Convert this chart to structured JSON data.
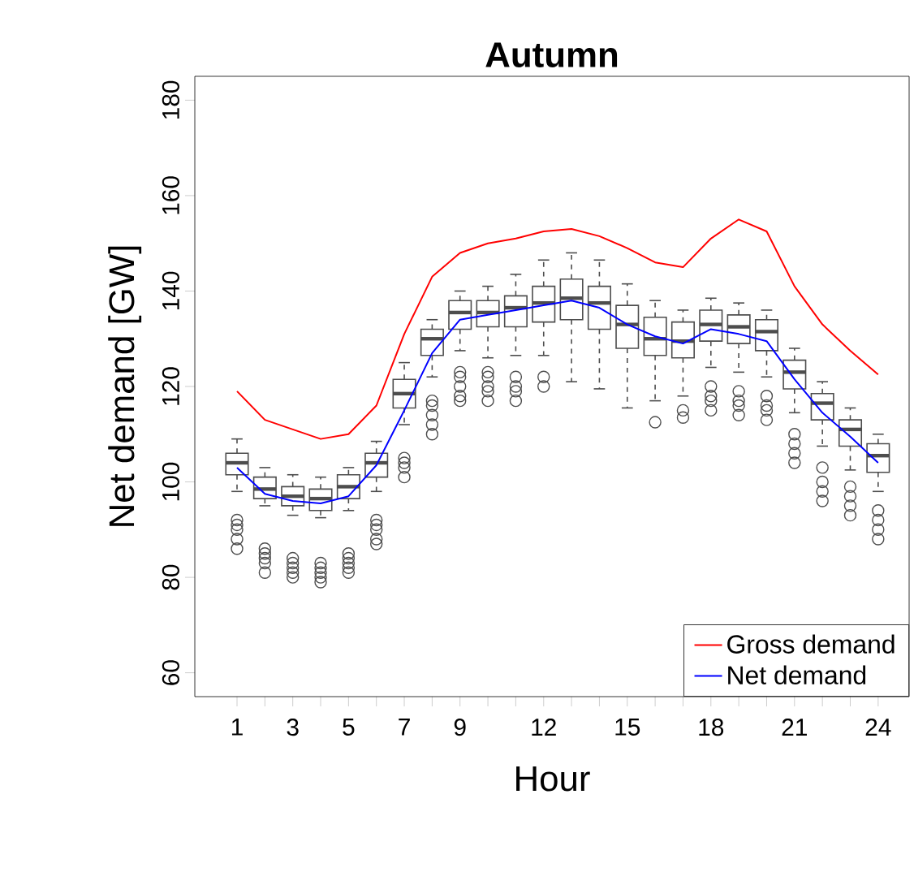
{
  "chart_data": {
    "type": "box",
    "title": "Autumn",
    "xlabel": "Hour",
    "ylabel": "Net demand [GW]",
    "categories": [
      "1",
      null,
      "3",
      null,
      "5",
      null,
      "7",
      null,
      "9",
      null,
      null,
      "12",
      null,
      null,
      "15",
      null,
      null,
      "18",
      null,
      null,
      "21",
      null,
      null,
      "24"
    ],
    "ylim": [
      55,
      185
    ],
    "yticks": [
      60,
      80,
      100,
      120,
      140,
      160,
      180
    ],
    "legend": "bottom right",
    "series": [
      {
        "color": "#4d4d4d",
        "boxes": [
          {
            "low": 98,
            "q1": 101.5,
            "median": 104,
            "q3": 106,
            "high": 109,
            "outliers": [
              86,
              88,
              90,
              91,
              92
            ]
          },
          {
            "low": 95,
            "q1": 96.5,
            "median": 98.5,
            "q3": 101,
            "high": 103,
            "outliers": [
              81,
              83,
              84,
              85,
              86
            ]
          },
          {
            "low": 93,
            "q1": 95,
            "median": 97,
            "q3": 99,
            "high": 101.5,
            "outliers": [
              80,
              81,
              82,
              83,
              84
            ]
          },
          {
            "low": 92.5,
            "q1": 94,
            "median": 96.5,
            "q3": 98.5,
            "high": 101,
            "outliers": [
              79,
              80,
              81,
              82,
              83
            ]
          },
          {
            "low": 94,
            "q1": 96.5,
            "median": 99,
            "q3": 101.5,
            "high": 103,
            "outliers": [
              81,
              82,
              83,
              84,
              85
            ]
          },
          {
            "low": 98,
            "q1": 101,
            "median": 104,
            "q3": 106,
            "high": 108.5,
            "outliers": [
              87,
              88,
              90,
              91,
              92
            ]
          },
          {
            "low": 112,
            "q1": 115.5,
            "median": 118.5,
            "q3": 121.5,
            "high": 125,
            "outliers": [
              101,
              103,
              104,
              105
            ]
          },
          {
            "low": 122,
            "q1": 126.5,
            "median": 130,
            "q3": 132,
            "high": 134,
            "outliers": [
              110,
              112,
              114,
              116,
              117
            ]
          },
          {
            "low": 127.5,
            "q1": 132,
            "median": 135.5,
            "q3": 138,
            "high": 140,
            "outliers": [
              117,
              118,
              120,
              122,
              123
            ]
          },
          {
            "low": 126,
            "q1": 132.5,
            "median": 135.5,
            "q3": 138,
            "high": 141,
            "outliers": [
              117,
              119,
              120,
              122,
              123
            ]
          },
          {
            "low": 126.5,
            "q1": 132.5,
            "median": 136.5,
            "q3": 139,
            "high": 143.5,
            "outliers": [
              117,
              119,
              120,
              122
            ]
          },
          {
            "low": 126.5,
            "q1": 133.5,
            "median": 137.5,
            "q3": 141,
            "high": 146.5,
            "outliers": [
              120,
              122
            ]
          },
          {
            "low": 121,
            "q1": 134,
            "median": 138.5,
            "q3": 142.5,
            "high": 148
          },
          {
            "low": 119.5,
            "q1": 132,
            "median": 137.5,
            "q3": 141,
            "high": 146.5
          },
          {
            "low": 115.5,
            "q1": 128,
            "median": 133,
            "q3": 137,
            "high": 141.5
          },
          {
            "low": 117,
            "q1": 126.5,
            "median": 130,
            "q3": 134.5,
            "high": 138,
            "outliers": [
              112.5
            ]
          },
          {
            "low": 118,
            "q1": 126,
            "median": 129.5,
            "q3": 133.5,
            "high": 136,
            "outliers": [
              113.5,
              115
            ]
          },
          {
            "low": 124,
            "q1": 129.5,
            "median": 133,
            "q3": 136,
            "high": 138.5,
            "outliers": [
              115,
              117,
              118,
              120
            ]
          },
          {
            "low": 123,
            "q1": 129,
            "median": 132.5,
            "q3": 135,
            "high": 137.5,
            "outliers": [
              114,
              116,
              117,
              119
            ]
          },
          {
            "low": 122,
            "q1": 127.5,
            "median": 131.5,
            "q3": 134,
            "high": 136,
            "outliers": [
              113,
              115,
              116,
              118
            ]
          },
          {
            "low": 114.5,
            "q1": 119.5,
            "median": 123,
            "q3": 125.5,
            "high": 128,
            "outliers": [
              104,
              106,
              108,
              110
            ]
          },
          {
            "low": 107.5,
            "q1": 113,
            "median": 116.5,
            "q3": 118.5,
            "high": 121,
            "outliers": [
              96,
              98,
              100,
              103
            ]
          },
          {
            "low": 102.5,
            "q1": 107.5,
            "median": 111,
            "q3": 113,
            "high": 115.5,
            "outliers": [
              93,
              95,
              97,
              99
            ]
          },
          {
            "low": 98,
            "q1": 102,
            "median": 105.5,
            "q3": 108,
            "high": 110,
            "outliers": [
              88,
              90,
              92,
              94
            ]
          }
        ]
      },
      {
        "type": "line",
        "name": "Gross demand",
        "color": "#ff0000",
        "values": [
          119,
          113,
          111,
          109,
          110,
          116,
          131,
          143,
          148,
          150,
          151,
          152.5,
          153,
          151.5,
          149,
          146,
          145,
          151,
          155,
          152.5,
          141,
          133,
          127.5,
          122.5
        ]
      },
      {
        "type": "line",
        "name": "Net demand",
        "color": "#0000ff",
        "values": [
          103,
          97.5,
          96,
          95.5,
          97,
          103.5,
          115,
          127,
          134,
          135,
          136,
          137,
          138,
          136.5,
          133,
          130.5,
          129,
          132,
          131,
          129.5,
          121.5,
          114.5,
          109.5,
          104
        ]
      }
    ]
  }
}
